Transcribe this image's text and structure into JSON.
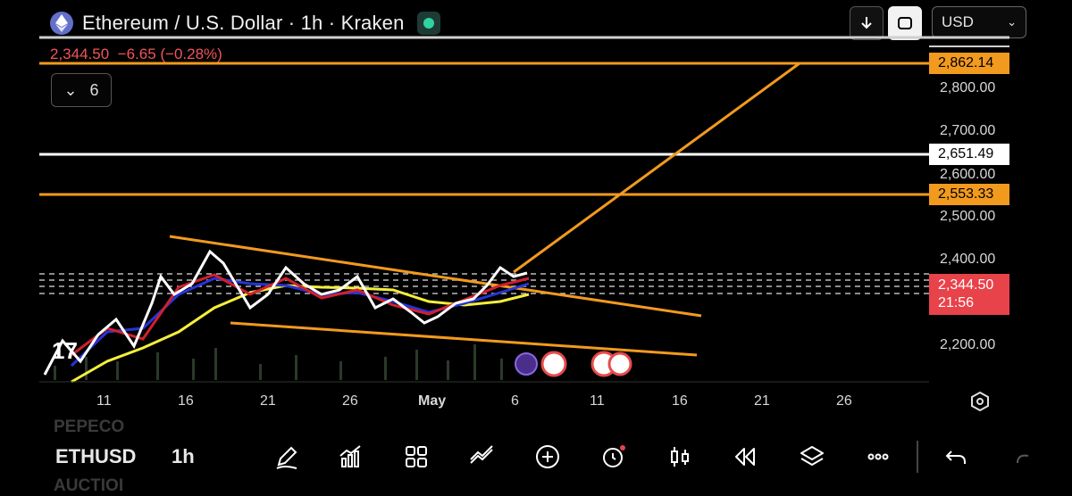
{
  "header": {
    "title": "Ethereum / U.S. Dollar · 1h · Kraken",
    "currency": "USD"
  },
  "price": {
    "last": "2,344.50",
    "change": "−6.65 (−0.28%)"
  },
  "legend": {
    "count": "6"
  },
  "price_axis": {
    "ticks": [
      "2,800.00",
      "2,700.00",
      "2,600.00",
      "2,500.00",
      "2,400.00",
      "2,200.00"
    ],
    "tags": {
      "top_level": "2,862.14",
      "white_level": "2,651.49",
      "orange_level": "2,553.33",
      "current": "2,344.50",
      "countdown": "21:56"
    }
  },
  "time_axis": {
    "labels": [
      "11",
      "16",
      "21",
      "26",
      "May",
      "6",
      "11",
      "16",
      "21",
      "26"
    ]
  },
  "bottom": {
    "symbol": "ETHUSD",
    "interval": "1h",
    "ghost_top": "PEPECO",
    "ghost_bottom": "AUCTIOI"
  },
  "colors": {
    "orange": "#f29a1e",
    "red": "#e8424a",
    "white_line": "#ffffff",
    "yellow_ma": "#f5ef3c",
    "blue_ma": "#2634d6",
    "red_ma": "#d0202e"
  },
  "icons": [
    "ethereum-icon",
    "download-icon",
    "fullscreen-icon",
    "chevron-down-icon",
    "draw-icon",
    "indicators-icon",
    "templates-icon",
    "chart-type-icon",
    "add-icon",
    "alert-icon",
    "candles-icon",
    "replay-icon",
    "layers-icon",
    "more-icon",
    "undo-icon",
    "settings-hex-icon"
  ]
}
